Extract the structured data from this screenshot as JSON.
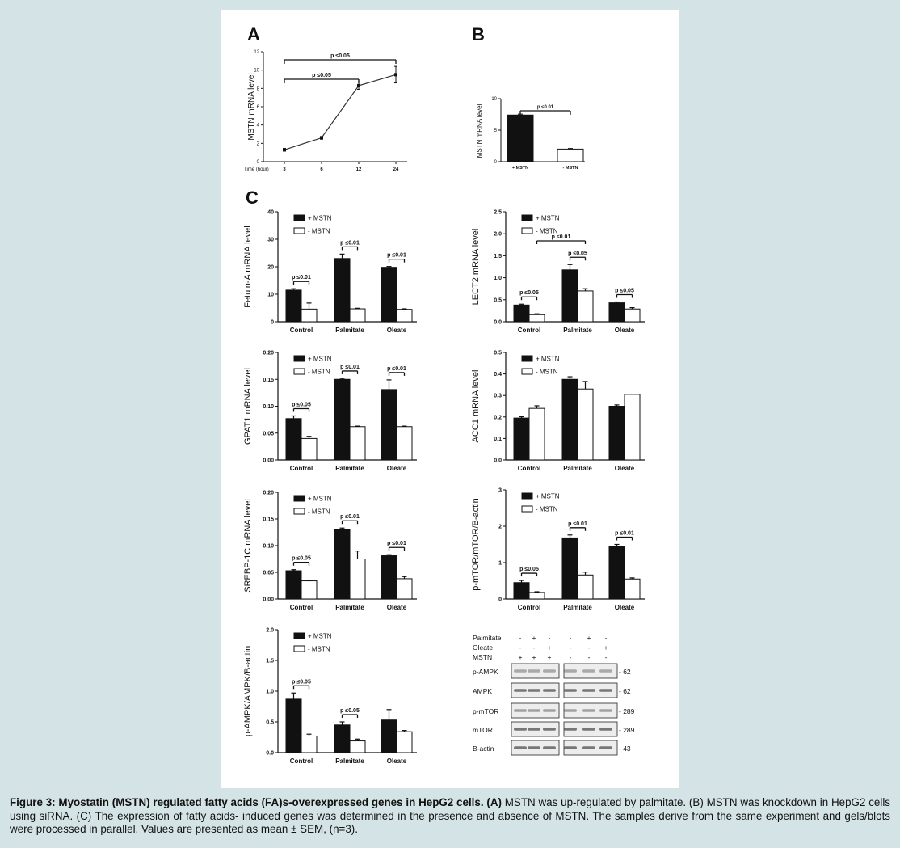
{
  "panel_letters": {
    "A": "A",
    "B": "B",
    "C": "C"
  },
  "caption": {
    "bold": "Figure 3: Myostatin (MSTN) regulated fatty acids (FA)s-overexpressed genes in HepG2 cells. (A)",
    "text": " MSTN was up-regulated by palmitate. (B) MSTN was knockdown in HepG2 cells using siRNA. (C) The expression of fatty acids- induced genes was determined in the presence and absence of MSTN. The samples derive from the same experiment and gels/blots were processed in parallel. Values are presented as mean ± SEM, (n=3)."
  },
  "legend": {
    "plus": "+ MSTN",
    "minus": "- MSTN"
  },
  "colors": {
    "filled": "#111111",
    "open": "#ffffff",
    "frame": "#d4e4e6"
  },
  "chart_data": [
    {
      "id": "A",
      "type": "line",
      "x": [
        "3",
        "6",
        "12",
        "24"
      ],
      "xlabel": "Time (hour)",
      "y": [
        1.3,
        2.6,
        8.3,
        9.5
      ],
      "err": [
        0.15,
        0.15,
        0.4,
        0.9
      ],
      "ylabel": "MSTN mRNA level",
      "ylim": [
        0,
        12
      ],
      "yticks": [
        0,
        2,
        4,
        6,
        8,
        10,
        12
      ],
      "brackets": [
        {
          "from": 0,
          "to": 3,
          "label": "p ≤0.05"
        },
        {
          "from": 0,
          "to": 2,
          "label": "p ≤0.05"
        }
      ]
    },
    {
      "id": "B",
      "type": "bar",
      "categories": [
        "+ MSTN",
        "- MSTN"
      ],
      "values": [
        7.4,
        2.0
      ],
      "err": [
        0.15,
        0.1
      ],
      "ylabel": "MSTN mRNA level",
      "ylim": [
        0,
        10
      ],
      "yticks": [
        0,
        5,
        10
      ],
      "bracket": "p ≤0.01"
    },
    {
      "id": "Fetuin",
      "type": "bar",
      "categories": [
        "Control",
        "Palmitate",
        "Oleate"
      ],
      "series": [
        {
          "name": "+ MSTN",
          "values": [
            11.5,
            23,
            19.8
          ],
          "err": [
            0.5,
            1.6,
            0.3
          ]
        },
        {
          "name": "- MSTN",
          "values": [
            4.6,
            4.7,
            4.5
          ],
          "err": [
            2.2,
            0.2,
            0.2
          ]
        }
      ],
      "ylabel": "Fetuin-A mRNA level",
      "ylim": [
        0,
        40
      ],
      "yticks": [
        "0",
        "10",
        "20",
        "30",
        "40"
      ],
      "pvals": [
        "p ≤0.01",
        "p ≤0.01",
        "p ≤0.01"
      ]
    },
    {
      "id": "LECT2",
      "type": "bar",
      "categories": [
        "Control",
        "Palmitate",
        "Oleate"
      ],
      "series": [
        {
          "name": "+ MSTN",
          "values": [
            0.38,
            1.18,
            0.43
          ],
          "err": [
            0.02,
            0.12,
            0.02
          ]
        },
        {
          "name": "- MSTN",
          "values": [
            0.16,
            0.7,
            0.29
          ],
          "err": [
            0.02,
            0.05,
            0.03
          ]
        }
      ],
      "ylabel": "LECT2 mRNA level",
      "ylim": [
        0,
        2.5
      ],
      "yticks": [
        "0.0",
        "0.5",
        "1.0",
        "1.5",
        "2.0",
        "2.5"
      ],
      "pvals": [
        "p ≤0.05",
        "p ≤0.05",
        "p ≤0.05"
      ],
      "extra_bracket": "p ≤0.01"
    },
    {
      "id": "GPAT1",
      "type": "bar",
      "categories": [
        "Control",
        "Palmitate",
        "Oleate"
      ],
      "series": [
        {
          "name": "+ MSTN",
          "values": [
            0.077,
            0.15,
            0.131
          ],
          "err": [
            0.005,
            0.002,
            0.018
          ]
        },
        {
          "name": "- MSTN",
          "values": [
            0.04,
            0.062,
            0.062
          ],
          "err": [
            0.004,
            0.001,
            0.001
          ]
        }
      ],
      "ylabel": "GPAT1 mRNA level",
      "ylim": [
        0,
        0.2
      ],
      "yticks": [
        "0.00",
        "0.05",
        "0.10",
        "0.15",
        "0.20"
      ],
      "pvals": [
        "p ≤0.05",
        "p ≤0.01",
        "p ≤0.01"
      ]
    },
    {
      "id": "ACC1",
      "type": "bar",
      "categories": [
        "Control",
        "Palmitate",
        "Oleate"
      ],
      "series": [
        {
          "name": "+ MSTN",
          "values": [
            0.195,
            0.375,
            0.25
          ],
          "err": [
            0.006,
            0.012,
            0.006
          ]
        },
        {
          "name": "- MSTN",
          "values": [
            0.24,
            0.33,
            0.305
          ],
          "err": [
            0.012,
            0.035,
            0.0
          ]
        }
      ],
      "ylabel": "ACC1 mRNA level",
      "ylim": [
        0,
        0.5
      ],
      "yticks": [
        "0.0",
        "0.1",
        "0.2",
        "0.3",
        "0.4",
        "0.5"
      ],
      "pvals": []
    },
    {
      "id": "SREBP",
      "type": "bar",
      "categories": [
        "Control",
        "Palmitate",
        "Oleate"
      ],
      "series": [
        {
          "name": "+ MSTN",
          "values": [
            0.053,
            0.13,
            0.081
          ],
          "err": [
            0.002,
            0.003,
            0.002
          ]
        },
        {
          "name": "- MSTN",
          "values": [
            0.034,
            0.075,
            0.038
          ],
          "err": [
            0.001,
            0.015,
            0.004
          ]
        }
      ],
      "ylabel": "SREBP-1C mRNA level",
      "ylim": [
        0,
        0.2
      ],
      "yticks": [
        "0.00",
        "0.05",
        "0.10",
        "0.15",
        "0.20"
      ],
      "pvals": [
        "p ≤0.05",
        "p ≤0.01",
        "p ≤0.01"
      ]
    },
    {
      "id": "pmTOR",
      "type": "bar",
      "categories": [
        "Control",
        "Palmitate",
        "Oleate"
      ],
      "series": [
        {
          "name": "+ MSTN",
          "values": [
            0.45,
            1.68,
            1.45
          ],
          "err": [
            0.06,
            0.08,
            0.05
          ]
        },
        {
          "name": "- MSTN",
          "values": [
            0.18,
            0.66,
            0.55
          ],
          "err": [
            0.02,
            0.08,
            0.03
          ]
        }
      ],
      "ylabel": "p-mTOR/mTOR/B-actin",
      "ylim": [
        0,
        3
      ],
      "yticks": [
        "0",
        "1",
        "2",
        "3"
      ],
      "pvals": [
        "p ≤0.05",
        "p ≤0.01",
        "p ≤0.01"
      ]
    },
    {
      "id": "pAMPK",
      "type": "bar",
      "categories": [
        "Control",
        "Palmitate",
        "Oleate"
      ],
      "series": [
        {
          "name": "+ MSTN",
          "values": [
            0.87,
            0.45,
            0.53
          ],
          "err": [
            0.1,
            0.05,
            0.17
          ]
        },
        {
          "name": "- MSTN",
          "values": [
            0.27,
            0.19,
            0.34
          ],
          "err": [
            0.03,
            0.03,
            0.02
          ]
        }
      ],
      "ylabel": "p-AMPK/AMPK/B-actin",
      "ylim": [
        0,
        2
      ],
      "yticks": [
        "0.0",
        "0.5",
        "1.0",
        "1.5",
        "2.0"
      ],
      "pvals": [
        "p ≤0.05",
        "p ≤0.05"
      ]
    }
  ],
  "blot": {
    "conditions": [
      {
        "label": "Palmitate",
        "signs": [
          "-",
          "+",
          "-",
          "-",
          "+",
          "-"
        ]
      },
      {
        "label": "Oleate",
        "signs": [
          "-",
          "-",
          "+",
          "-",
          "-",
          "+"
        ]
      },
      {
        "label": "MSTN",
        "signs": [
          "+",
          "+",
          "+",
          "-",
          "-",
          "-"
        ]
      }
    ],
    "bands": [
      {
        "label": "p-AMPK",
        "kda": "62"
      },
      {
        "label": "AMPK",
        "kda": "62"
      },
      {
        "label": "p-mTOR",
        "kda": "289"
      },
      {
        "label": "mTOR",
        "kda": "289"
      },
      {
        "label": "B-actin",
        "kda": "43"
      }
    ]
  }
}
